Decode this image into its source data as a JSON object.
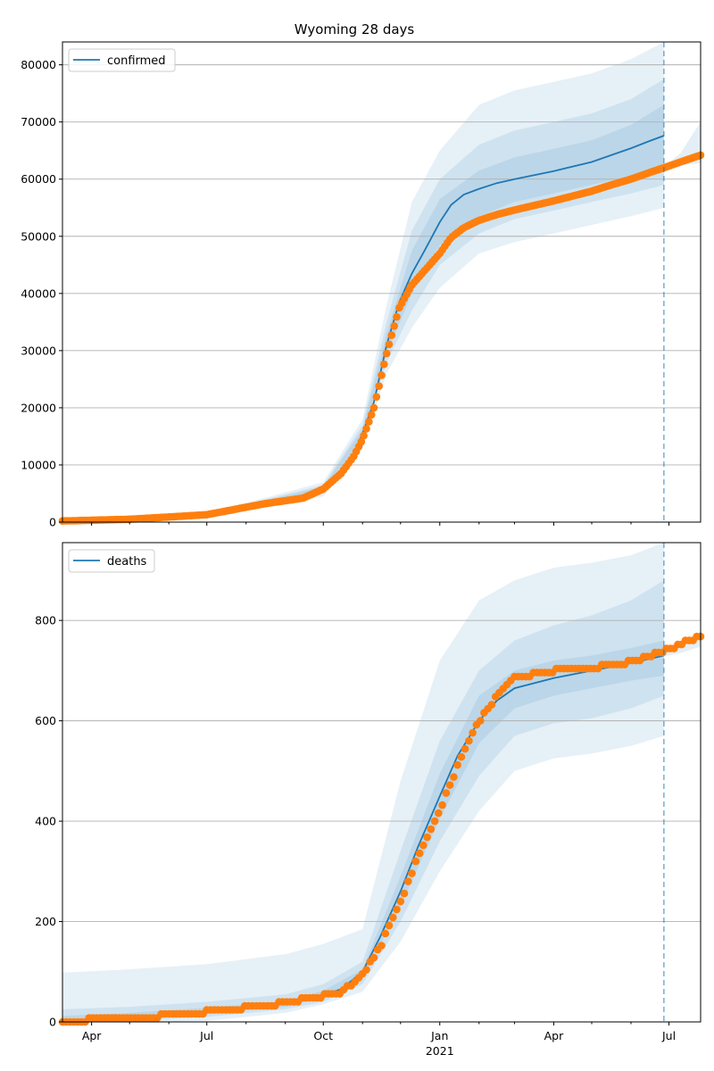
{
  "chart_data": [
    {
      "type": "line",
      "title": "Wyoming 28 days",
      "xlabel": "",
      "ylabel": "",
      "xlim": [
        "2020-03-09",
        "2021-07-26"
      ],
      "ylim": [
        0,
        84000
      ],
      "yticks": [
        0,
        10000,
        20000,
        30000,
        40000,
        50000,
        60000,
        70000,
        80000
      ],
      "grid": "horizontal",
      "legend": {
        "placement": "top-left",
        "entries": [
          "confirmed"
        ]
      },
      "forecast_start": "2021-06-27",
      "series": [
        {
          "name": "confirmed",
          "kind": "model-median",
          "x": [
            "2020-03-09",
            "2020-05-01",
            "2020-07-01",
            "2020-08-15",
            "2020-09-15",
            "2020-10-01",
            "2020-10-15",
            "2020-10-25",
            "2020-11-01",
            "2020-11-10",
            "2020-11-20",
            "2020-11-30",
            "2020-12-10",
            "2020-12-20",
            "2021-01-01",
            "2021-01-10",
            "2021-01-20",
            "2021-02-01",
            "2021-02-15",
            "2021-03-01",
            "2021-04-01",
            "2021-05-01",
            "2021-05-15",
            "2021-06-01",
            "2021-06-15",
            "2021-06-27"
          ],
          "values": [
            200,
            400,
            1300,
            3200,
            4200,
            5800,
            8500,
            12000,
            15500,
            21000,
            31000,
            38500,
            43500,
            47500,
            52500,
            55500,
            57300,
            58300,
            59300,
            60000,
            61400,
            63000,
            64100,
            65400,
            66600,
            67600
          ]
        },
        {
          "name": "confirmed",
          "kind": "observed",
          "x": [
            "2020-03-09",
            "2020-05-01",
            "2020-07-01",
            "2020-08-15",
            "2020-09-15",
            "2020-10-01",
            "2020-10-15",
            "2020-10-25",
            "2020-11-01",
            "2020-11-10",
            "2020-11-20",
            "2020-11-30",
            "2020-12-10",
            "2020-12-20",
            "2021-01-01",
            "2021-01-10",
            "2021-01-20",
            "2021-02-01",
            "2021-02-15",
            "2021-03-01",
            "2021-04-01",
            "2021-05-01",
            "2021-05-15",
            "2021-06-01",
            "2021-06-15",
            "2021-06-27",
            "2021-07-10",
            "2021-07-26"
          ],
          "values": [
            200,
            500,
            1300,
            3200,
            4200,
            5800,
            8500,
            11500,
            14500,
            20000,
            29500,
            37500,
            41500,
            44000,
            47000,
            49800,
            51500,
            52800,
            53800,
            54600,
            56200,
            57900,
            58900,
            60000,
            61100,
            62000,
            63000,
            64200
          ]
        }
      ],
      "bands": [
        {
          "level": "outer",
          "x": [
            "2020-03-09",
            "2020-07-01",
            "2020-10-01",
            "2020-11-01",
            "2020-11-20",
            "2020-12-10",
            "2021-01-01",
            "2021-02-01",
            "2021-03-01",
            "2021-04-01",
            "2021-05-01",
            "2021-06-01",
            "2021-06-27"
          ],
          "low": [
            150,
            1100,
            4500,
            13000,
            26000,
            34000,
            41000,
            47000,
            49000,
            50500,
            52000,
            53500,
            55000
          ],
          "high": [
            250,
            1500,
            7000,
            18000,
            38000,
            56000,
            65000,
            73000,
            75500,
            77000,
            78500,
            81000,
            84000
          ]
        },
        {
          "level": "middle",
          "x": [
            "2020-03-09",
            "2020-07-01",
            "2020-10-01",
            "2020-11-01",
            "2020-11-20",
            "2020-12-10",
            "2021-01-01",
            "2021-02-01",
            "2021-03-01",
            "2021-04-01",
            "2021-05-01",
            "2021-06-01",
            "2021-06-27"
          ],
          "low": [
            170,
            1200,
            5000,
            14000,
            28000,
            37000,
            45000,
            50500,
            53000,
            54500,
            56000,
            57500,
            59000
          ],
          "high": [
            230,
            1400,
            6500,
            17000,
            35000,
            51000,
            60000,
            66000,
            68500,
            70000,
            71500,
            74000,
            77500
          ]
        },
        {
          "level": "inner",
          "x": [
            "2020-03-09",
            "2020-07-01",
            "2020-10-01",
            "2020-11-01",
            "2020-11-20",
            "2020-12-10",
            "2021-01-01",
            "2021-02-01",
            "2021-03-01",
            "2021-04-01",
            "2021-05-01",
            "2021-06-01",
            "2021-06-27"
          ],
          "low": [
            185,
            1250,
            5400,
            14800,
            29500,
            40000,
            48500,
            53500,
            56000,
            57500,
            59000,
            60500,
            62500
          ],
          "high": [
            215,
            1350,
            6200,
            16300,
            33000,
            47500,
            56500,
            61500,
            63800,
            65300,
            66800,
            69500,
            73000
          ]
        },
        {
          "level": "future",
          "x": [
            "2021-06-27",
            "2021-07-10",
            "2021-07-26"
          ],
          "low": [
            61800,
            62400,
            62800
          ],
          "high": [
            62200,
            64500,
            70000
          ]
        }
      ]
    },
    {
      "type": "line",
      "title": "",
      "xlabel": "",
      "ylabel": "",
      "xlim": [
        "2020-03-09",
        "2021-07-26"
      ],
      "ylim": [
        0,
        955
      ],
      "yticks": [
        0,
        200,
        400,
        600,
        800
      ],
      "xticks": [
        "Apr",
        "Jul",
        "Oct",
        "Jan",
        "Apr",
        "Jul"
      ],
      "xtick_year": "2021",
      "grid": "horizontal",
      "legend": {
        "placement": "top-left",
        "entries": [
          "deaths"
        ]
      },
      "forecast_start": "2021-06-27",
      "series": [
        {
          "name": "deaths",
          "kind": "model-median",
          "x": [
            "2020-03-09",
            "2020-05-01",
            "2020-07-01",
            "2020-08-15",
            "2020-09-15",
            "2020-10-01",
            "2020-10-15",
            "2020-11-01",
            "2020-11-15",
            "2020-12-01",
            "2020-12-15",
            "2021-01-01",
            "2021-01-15",
            "2021-02-01",
            "2021-02-15",
            "2021-03-01",
            "2021-04-01",
            "2021-05-01",
            "2021-06-01",
            "2021-06-27"
          ],
          "values": [
            2,
            8,
            20,
            30,
            45,
            55,
            65,
            100,
            170,
            260,
            350,
            450,
            530,
            600,
            640,
            665,
            685,
            700,
            715,
            730
          ]
        },
        {
          "name": "deaths",
          "kind": "observed",
          "x": [
            "2020-03-09",
            "2020-04-15",
            "2020-05-15",
            "2020-07-01",
            "2020-08-15",
            "2020-09-15",
            "2020-10-01",
            "2020-10-15",
            "2020-11-01",
            "2020-11-15",
            "2020-12-01",
            "2020-12-15",
            "2021-01-01",
            "2021-01-15",
            "2021-02-01",
            "2021-02-15",
            "2021-03-01",
            "2021-04-01",
            "2021-05-01",
            "2021-06-01",
            "2021-06-27",
            "2021-07-10",
            "2021-07-26"
          ],
          "values": [
            3,
            5,
            10,
            20,
            32,
            45,
            52,
            58,
            95,
            150,
            240,
            330,
            420,
            510,
            600,
            650,
            685,
            700,
            705,
            718,
            738,
            752,
            768
          ]
        }
      ],
      "bands": [
        {
          "level": "outer",
          "x": [
            "2020-03-09",
            "2020-05-01",
            "2020-07-01",
            "2020-09-01",
            "2020-10-01",
            "2020-11-01",
            "2020-12-01",
            "2021-01-01",
            "2021-02-01",
            "2021-03-01",
            "2021-04-01",
            "2021-05-01",
            "2021-06-01",
            "2021-06-27"
          ],
          "low": [
            0,
            0,
            2,
            18,
            35,
            60,
            160,
            300,
            420,
            500,
            525,
            535,
            550,
            570
          ],
          "high": [
            98,
            105,
            115,
            135,
            155,
            185,
            480,
            720,
            840,
            880,
            905,
            915,
            930,
            955
          ]
        },
        {
          "level": "middle",
          "x": [
            "2020-03-09",
            "2020-05-01",
            "2020-07-01",
            "2020-09-01",
            "2020-10-01",
            "2020-11-01",
            "2020-12-01",
            "2021-01-01",
            "2021-02-01",
            "2021-03-01",
            "2021-04-01",
            "2021-05-01",
            "2021-06-01",
            "2021-06-27"
          ],
          "low": [
            0,
            2,
            10,
            25,
            40,
            75,
            200,
            360,
            490,
            570,
            595,
            605,
            625,
            650
          ],
          "high": [
            25,
            30,
            40,
            55,
            75,
            120,
            340,
            560,
            700,
            760,
            790,
            810,
            840,
            880
          ]
        },
        {
          "level": "inner",
          "x": [
            "2020-03-09",
            "2020-05-01",
            "2020-07-01",
            "2020-09-01",
            "2020-10-01",
            "2020-11-01",
            "2020-12-01",
            "2021-01-01",
            "2021-02-01",
            "2021-03-01",
            "2021-04-01",
            "2021-05-01",
            "2021-06-01",
            "2021-06-27"
          ],
          "low": [
            0,
            5,
            15,
            30,
            48,
            88,
            230,
            405,
            555,
            625,
            650,
            665,
            680,
            690
          ],
          "high": [
            12,
            18,
            28,
            42,
            62,
            105,
            290,
            495,
            650,
            700,
            720,
            730,
            745,
            760
          ]
        },
        {
          "level": "future",
          "x": [
            "2021-06-27",
            "2021-07-10",
            "2021-07-26"
          ],
          "low": [
            728,
            735,
            748
          ],
          "high": [
            735,
            755,
            778
          ]
        }
      ]
    }
  ]
}
